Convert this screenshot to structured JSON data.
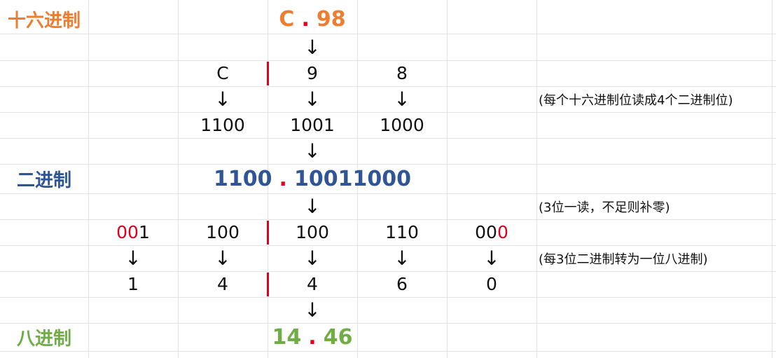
{
  "colors": {
    "hex": "#ed7d31",
    "bin": "#2f5597",
    "oct": "#70ad47",
    "red_mark": "#e0001b"
  },
  "labels": {
    "hex": "十六进制",
    "bin": "二进制",
    "oct": "八进制"
  },
  "hex_value": {
    "left": "C",
    "dot": ".",
    "right": "98"
  },
  "hex_digits": [
    "C",
    "9",
    "8"
  ],
  "hex_bins": [
    "1100",
    "1001",
    "1000"
  ],
  "bin_value": {
    "left": "1100",
    "dot": ".",
    "right": "10011000"
  },
  "groups": [
    {
      "pad": "00",
      "digits": "1"
    },
    {
      "pad": "",
      "digits": "100"
    },
    {
      "pad": "",
      "digits": "100"
    },
    {
      "pad": "",
      "digits": "110"
    },
    {
      "digits": "00",
      "pad": "0"
    }
  ],
  "oct_digits": [
    "1",
    "4",
    "4",
    "6",
    "0"
  ],
  "oct_value": {
    "left": "14",
    "dot": ".",
    "right": "46"
  },
  "arrow": "↓",
  "notes": {
    "hex_to_bin": "(每个十六进制位读成4个二进制位)",
    "group": "(3位一读，不足则补零)",
    "bin_to_oct": "(每3位二进制转为一位八进制)"
  }
}
